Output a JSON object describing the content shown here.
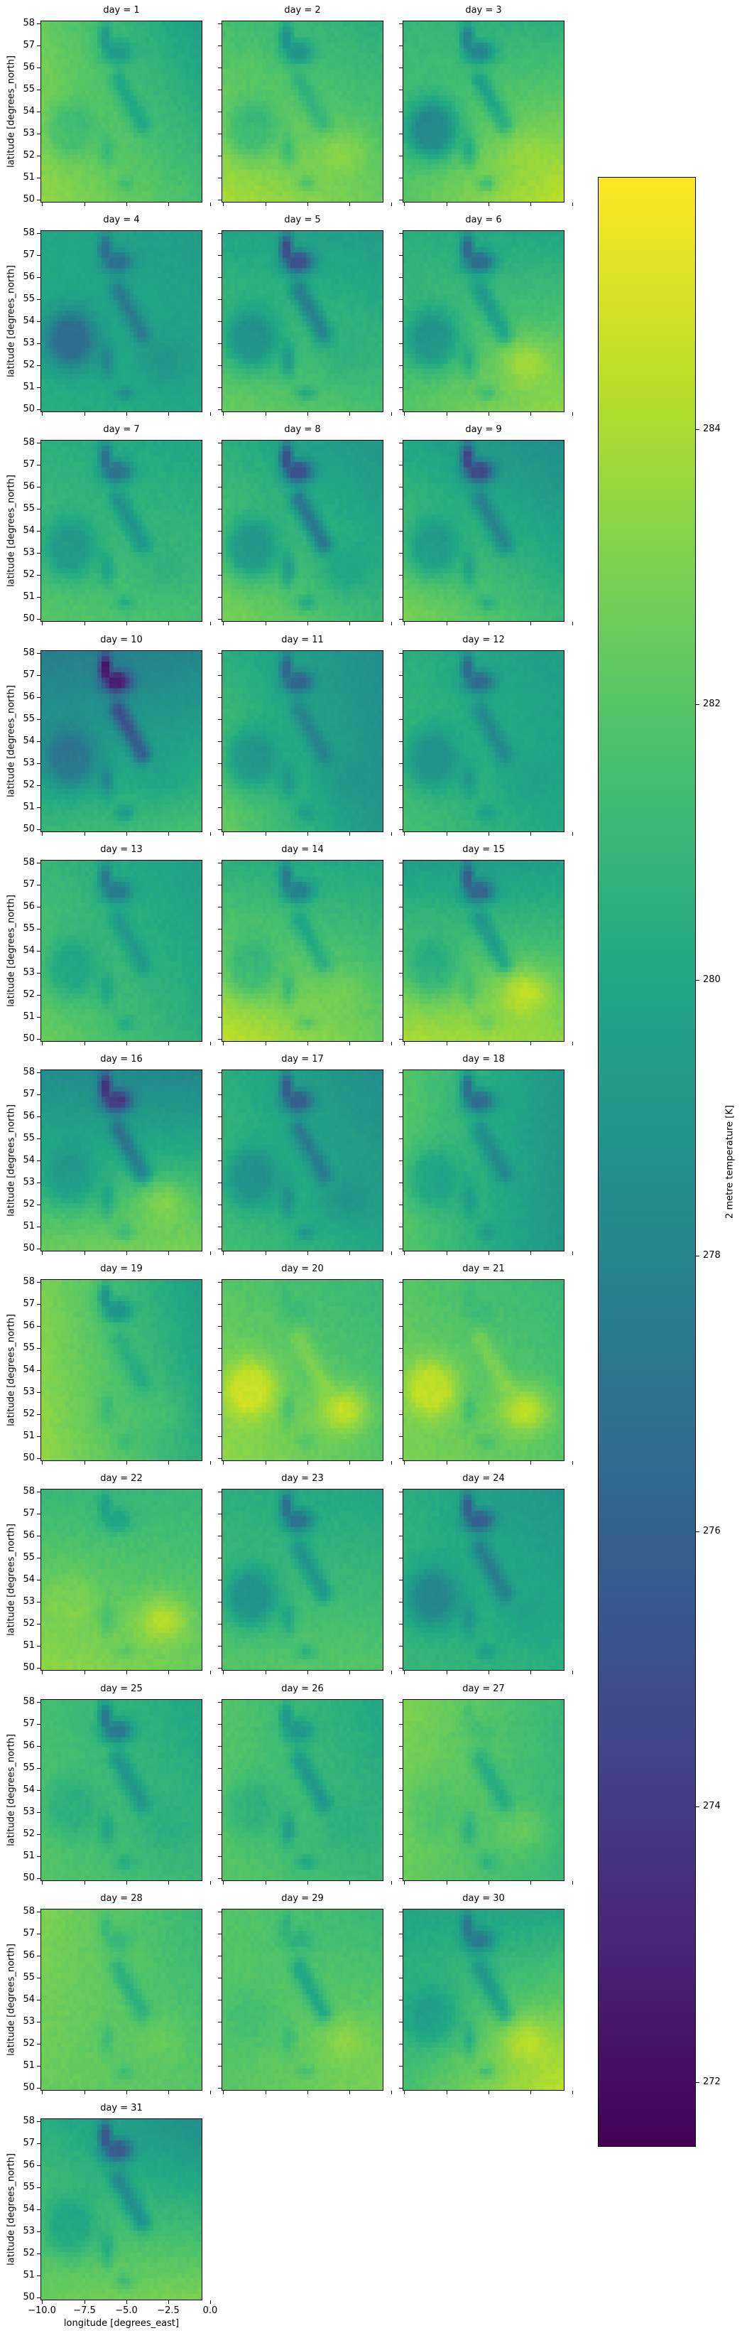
{
  "chart_data": {
    "type": "heatmap",
    "facet_variable": "day",
    "facet_title_format": "day = {}",
    "facets": [
      1,
      2,
      3,
      4,
      5,
      6,
      7,
      8,
      9,
      10,
      11,
      12,
      13,
      14,
      15,
      16,
      17,
      18,
      19,
      20,
      21,
      22,
      23,
      24,
      25,
      26,
      27,
      28,
      29,
      30,
      31
    ],
    "columns": 3,
    "xlabel": "longitude [degrees_east]",
    "ylabel": "latitude [degrees_north]",
    "xlim": [
      -10.1,
      1.6
    ],
    "ylim": [
      49.87,
      58.13
    ],
    "xticks": [
      -10.0,
      -7.5,
      -5.0,
      -2.5,
      0.0
    ],
    "xtick_labels": [
      "−10.0",
      "−7.5",
      "−5.0",
      "−2.5",
      "0.0"
    ],
    "yticks": [
      50,
      51,
      52,
      53,
      54,
      55,
      56,
      57,
      58
    ],
    "ytick_labels": [
      "50",
      "51",
      "52",
      "53",
      "54",
      "55",
      "56",
      "57",
      "58"
    ],
    "colorbar": {
      "label": "2 metre temperature [K]",
      "range": [
        271.53,
        285.83
      ],
      "ticks": [
        272,
        274,
        276,
        278,
        280,
        282,
        284
      ],
      "tick_labels": [
        "272",
        "274",
        "276",
        "278",
        "280",
        "282",
        "284"
      ],
      "colormap": "viridis"
    },
    "approx_regional_values_note_fields": [
      "sea_northwest_K",
      "sea_northeast_K",
      "sea_southwest_K",
      "sea_southeast_K",
      "ireland_offset_K",
      "scottish_highlands_offset_K",
      "pennines_offset_K",
      "wales_offset_K",
      "southeast_england_offset_K"
    ],
    "days": [
      [
        282.5,
        279.5,
        283.5,
        281.5,
        -1.2,
        -2.0,
        -1.5,
        -1.2,
        0.0
      ],
      [
        281.5,
        280.5,
        284.0,
        282.5,
        -1.5,
        -2.5,
        -1.2,
        -1.5,
        1.0
      ],
      [
        281.0,
        280.5,
        282.0,
        284.5,
        -3.5,
        -3.0,
        -2.0,
        -2.0,
        0.5
      ],
      [
        280.0,
        279.5,
        280.5,
        280.0,
        -3.5,
        -3.0,
        -2.5,
        -2.0,
        -1.0
      ],
      [
        280.0,
        279.5,
        282.5,
        281.5,
        -2.5,
        -5.0,
        -3.0,
        -2.0,
        -0.5
      ],
      [
        280.5,
        280.0,
        282.0,
        283.5,
        -2.5,
        -4.0,
        -2.0,
        -1.5,
        1.5
      ],
      [
        280.5,
        280.0,
        282.0,
        281.5,
        -2.0,
        -3.5,
        -2.0,
        -1.5,
        -0.5
      ],
      [
        280.5,
        279.0,
        283.0,
        281.0,
        -2.5,
        -5.0,
        -3.5,
        -2.0,
        -1.0
      ],
      [
        280.0,
        278.5,
        283.0,
        281.0,
        -2.0,
        -5.0,
        -2.5,
        -1.5,
        0.0
      ],
      [
        277.5,
        278.0,
        281.0,
        281.5,
        -2.5,
        -5.5,
        -4.0,
        -2.0,
        -0.5
      ],
      [
        280.5,
        278.5,
        282.5,
        279.0,
        -2.0,
        -3.5,
        -2.0,
        -1.5,
        -0.5
      ],
      [
        280.5,
        279.5,
        281.5,
        280.0,
        -2.0,
        -3.5,
        -2.0,
        -1.5,
        -0.5
      ],
      [
        281.0,
        279.5,
        282.5,
        280.5,
        -1.5,
        -3.0,
        -1.5,
        -1.5,
        0.0
      ],
      [
        280.5,
        280.0,
        284.5,
        282.5,
        -1.5,
        -3.0,
        -1.5,
        -1.5,
        0.5
      ],
      [
        279.5,
        279.5,
        284.0,
        283.5,
        -1.5,
        -4.0,
        -2.0,
        -1.0,
        2.0
      ],
      [
        278.5,
        278.0,
        282.5,
        283.0,
        -1.5,
        -5.0,
        -3.0,
        -1.5,
        1.5
      ],
      [
        280.5,
        278.5,
        281.5,
        280.0,
        -2.0,
        -4.0,
        -2.5,
        -2.0,
        -1.0
      ],
      [
        282.0,
        279.0,
        282.0,
        279.0,
        -1.5,
        -4.0,
        -2.0,
        -1.5,
        0.0
      ],
      [
        283.0,
        279.5,
        283.5,
        280.5,
        0.0,
        -2.5,
        -1.0,
        -1.0,
        0.5
      ],
      [
        282.0,
        281.0,
        283.5,
        282.0,
        2.0,
        -0.5,
        1.0,
        -1.0,
        2.5
      ],
      [
        282.0,
        281.0,
        283.0,
        282.0,
        2.0,
        -0.5,
        1.0,
        -1.0,
        2.5
      ],
      [
        281.0,
        281.0,
        283.5,
        282.5,
        0.5,
        -1.5,
        0.0,
        -1.0,
        2.0
      ],
      [
        280.5,
        280.0,
        282.0,
        282.0,
        -2.5,
        -3.5,
        -2.0,
        -1.5,
        0.0
      ],
      [
        280.5,
        279.0,
        281.0,
        280.5,
        -2.5,
        -4.0,
        -2.5,
        -1.5,
        -0.5
      ],
      [
        281.5,
        280.0,
        282.0,
        281.0,
        -1.0,
        -3.5,
        -2.0,
        -1.5,
        -0.5
      ],
      [
        282.0,
        280.0,
        282.0,
        281.0,
        -1.0,
        -2.0,
        -2.0,
        -2.0,
        -0.5
      ],
      [
        283.0,
        281.0,
        282.5,
        281.0,
        -0.5,
        -0.5,
        -1.5,
        -1.5,
        1.0
      ],
      [
        283.0,
        281.0,
        282.5,
        282.0,
        0.0,
        -1.0,
        -1.5,
        -1.0,
        0.5
      ],
      [
        282.0,
        281.0,
        282.0,
        283.0,
        -0.5,
        -1.0,
        -2.0,
        -1.0,
        1.0
      ],
      [
        280.0,
        280.0,
        281.5,
        284.5,
        -1.5,
        -3.0,
        -2.0,
        -1.5,
        1.5
      ],
      [
        280.5,
        278.5,
        282.5,
        283.0,
        -1.5,
        -4.5,
        -2.5,
        -1.5,
        0.0
      ]
    ]
  }
}
